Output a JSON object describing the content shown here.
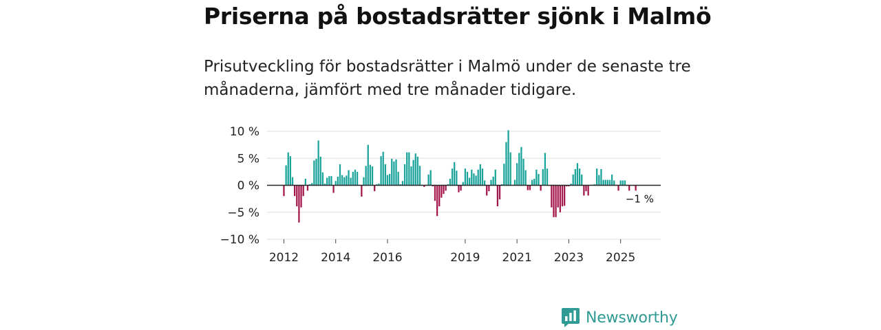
{
  "title": "Priserna på bostadsrätter sjönk i Malmö",
  "subtitle": "Prisutveckling för bostadsrätter i Malmö under de senaste tre månaderna, jämfört med tre månader tidigare.",
  "brand": {
    "name": "Newsworthy",
    "icon": "newsworthy-logo-icon"
  },
  "colors": {
    "positive": "#1aa39a",
    "negative": "#a3174b",
    "grid": "#dddddd",
    "zero": "#222222",
    "brand": "#2f9b94"
  },
  "chart_data": {
    "type": "bar",
    "title": "Priserna på bostadsrätter sjönk i Malmö",
    "xlabel": "",
    "ylabel": "",
    "ylim": [
      -10,
      10
    ],
    "yticks": [
      10,
      5,
      0,
      -5,
      -10
    ],
    "ytick_labels": [
      "10 %",
      "5 %",
      "0 %",
      "−5 %",
      "−10 %"
    ],
    "xlim_years": [
      2011.35,
      2026.55
    ],
    "xticks": [
      2012,
      2014,
      2016,
      2019,
      2021,
      2023,
      2025
    ],
    "xtick_labels": [
      "2012",
      "2014",
      "2016",
      "2019",
      "2021",
      "2023",
      "2025"
    ],
    "start": {
      "year": 2012,
      "month": 1
    },
    "values": [
      -2.0,
      3.7,
      6.1,
      5.4,
      1.5,
      -2.0,
      -3.9,
      -6.9,
      -4.1,
      -2.0,
      1.2,
      -1.0,
      0.2,
      0.4,
      4.6,
      4.9,
      8.3,
      5.3,
      2.4,
      0.3,
      1.4,
      1.7,
      1.7,
      -1.4,
      0.8,
      1.6,
      3.9,
      1.9,
      1.5,
      1.8,
      2.8,
      1.4,
      2.5,
      2.9,
      2.5,
      0.1,
      -2.1,
      1.5,
      3.6,
      7.5,
      3.8,
      3.5,
      -1.1,
      0.2,
      0.3,
      5.4,
      6.2,
      3.9,
      1.9,
      2.1,
      4.9,
      4.4,
      4.8,
      2.5,
      0.2,
      0.8,
      3.9,
      6.1,
      6.1,
      3.5,
      4.7,
      5.9,
      5.3,
      3.6,
      0.1,
      -0.3,
      0.1,
      2.0,
      2.8,
      -0.2,
      -2.9,
      -5.7,
      -3.9,
      -2.3,
      -1.6,
      -1.0,
      0.2,
      1.2,
      3.1,
      4.3,
      2.7,
      -1.3,
      -1.0,
      0.6,
      3.1,
      2.5,
      1.4,
      2.9,
      2.2,
      1.8,
      2.9,
      3.9,
      3.1,
      0.9,
      -1.9,
      -1.1,
      1.0,
      1.6,
      2.9,
      -3.9,
      -2.6,
      0.2,
      4.0,
      8.0,
      10.2,
      6.1,
      0.1,
      1.0,
      4.1,
      6.0,
      7.1,
      4.9,
      2.8,
      -0.9,
      -0.9,
      1.0,
      1.2,
      2.9,
      2.1,
      -1.0,
      3.0,
      6.0,
      3.1,
      -0.1,
      -4.1,
      -5.9,
      -5.9,
      -4.1,
      -5.0,
      -3.9,
      -3.8,
      -0.2,
      -0.2,
      0.3,
      2.0,
      3.0,
      4.1,
      3.1,
      2.0,
      -1.9,
      -1.1,
      -1.9,
      0.1,
      0.1,
      0.2,
      3.1,
      1.9,
      3.0,
      1.0,
      1.0,
      1.0,
      1.0,
      2.0,
      0.9,
      0.1,
      -1.0,
      0.9,
      0.9,
      0.9,
      -0.1,
      -1.0,
      0.0,
      -0.1,
      -1.0,
      0.0,
      0.0
    ],
    "annotations": [
      {
        "text": "−1 %",
        "at": "last"
      }
    ]
  }
}
